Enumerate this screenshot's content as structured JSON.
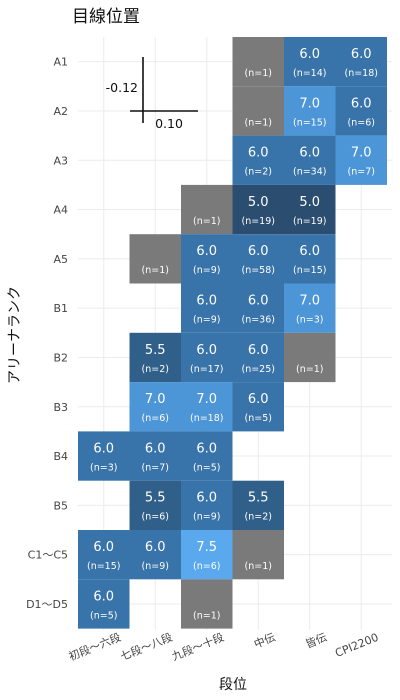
{
  "chart_data": {
    "type": "heatmap",
    "title": "目線位置",
    "xlabel": "段位",
    "ylabel": "アリーナランク",
    "x_categories": [
      "初段～六段",
      "七段～八段",
      "九段～十段",
      "中伝",
      "皆伝",
      "CPI2200"
    ],
    "y_categories": [
      "A1",
      "A2",
      "A3",
      "A4",
      "A5",
      "B1",
      "B2",
      "B3",
      "B4",
      "B5",
      "C1～C5",
      "D1～D5"
    ],
    "inset": {
      "vertical_value": "-0.12",
      "horizontal_value": "0.10"
    },
    "colors": {
      "5.0": "#2a4d70",
      "5.5": "#30608a",
      "6.0": "#3873aa",
      "7.0": "#4c95d6",
      "7.5": "#5aa8ee",
      "na": "#7a7a7a"
    },
    "cells": [
      {
        "x": "中伝",
        "y": "A1",
        "value": null,
        "value_label": "",
        "n_label": "(n=1)"
      },
      {
        "x": "皆伝",
        "y": "A1",
        "value": 6.0,
        "value_label": "6.0",
        "n_label": "(n=14)"
      },
      {
        "x": "CPI2200",
        "y": "A1",
        "value": 6.0,
        "value_label": "6.0",
        "n_label": "(n=18)"
      },
      {
        "x": "中伝",
        "y": "A2",
        "value": null,
        "value_label": "",
        "n_label": "(n=1)"
      },
      {
        "x": "皆伝",
        "y": "A2",
        "value": 7.0,
        "value_label": "7.0",
        "n_label": "(n=15)"
      },
      {
        "x": "CPI2200",
        "y": "A2",
        "value": 6.0,
        "value_label": "6.0",
        "n_label": "(n=6)"
      },
      {
        "x": "中伝",
        "y": "A3",
        "value": 6.0,
        "value_label": "6.0",
        "n_label": "(n=2)"
      },
      {
        "x": "皆伝",
        "y": "A3",
        "value": 6.0,
        "value_label": "6.0",
        "n_label": "(n=34)"
      },
      {
        "x": "CPI2200",
        "y": "A3",
        "value": 7.0,
        "value_label": "7.0",
        "n_label": "(n=7)"
      },
      {
        "x": "九段～十段",
        "y": "A4",
        "value": null,
        "value_label": "",
        "n_label": "(n=1)"
      },
      {
        "x": "中伝",
        "y": "A4",
        "value": 5.0,
        "value_label": "5.0",
        "n_label": "(n=19)"
      },
      {
        "x": "皆伝",
        "y": "A4",
        "value": 5.0,
        "value_label": "5.0",
        "n_label": "(n=19)"
      },
      {
        "x": "七段～八段",
        "y": "A5",
        "value": null,
        "value_label": "",
        "n_label": "(n=1)"
      },
      {
        "x": "九段～十段",
        "y": "A5",
        "value": 6.0,
        "value_label": "6.0",
        "n_label": "(n=9)"
      },
      {
        "x": "中伝",
        "y": "A5",
        "value": 6.0,
        "value_label": "6.0",
        "n_label": "(n=58)"
      },
      {
        "x": "皆伝",
        "y": "A5",
        "value": 6.0,
        "value_label": "6.0",
        "n_label": "(n=15)"
      },
      {
        "x": "九段～十段",
        "y": "B1",
        "value": 6.0,
        "value_label": "6.0",
        "n_label": "(n=9)"
      },
      {
        "x": "中伝",
        "y": "B1",
        "value": 6.0,
        "value_label": "6.0",
        "n_label": "(n=36)"
      },
      {
        "x": "皆伝",
        "y": "B1",
        "value": 7.0,
        "value_label": "7.0",
        "n_label": "(n=3)"
      },
      {
        "x": "七段～八段",
        "y": "B2",
        "value": 5.5,
        "value_label": "5.5",
        "n_label": "(n=2)"
      },
      {
        "x": "九段～十段",
        "y": "B2",
        "value": 6.0,
        "value_label": "6.0",
        "n_label": "(n=17)"
      },
      {
        "x": "中伝",
        "y": "B2",
        "value": 6.0,
        "value_label": "6.0",
        "n_label": "(n=25)"
      },
      {
        "x": "皆伝",
        "y": "B2",
        "value": null,
        "value_label": "",
        "n_label": "(n=1)"
      },
      {
        "x": "七段～八段",
        "y": "B3",
        "value": 7.0,
        "value_label": "7.0",
        "n_label": "(n=6)"
      },
      {
        "x": "九段～十段",
        "y": "B3",
        "value": 7.0,
        "value_label": "7.0",
        "n_label": "(n=18)"
      },
      {
        "x": "中伝",
        "y": "B3",
        "value": 6.0,
        "value_label": "6.0",
        "n_label": "(n=5)"
      },
      {
        "x": "初段～六段",
        "y": "B4",
        "value": 6.0,
        "value_label": "6.0",
        "n_label": "(n=3)"
      },
      {
        "x": "七段～八段",
        "y": "B4",
        "value": 6.0,
        "value_label": "6.0",
        "n_label": "(n=7)"
      },
      {
        "x": "九段～十段",
        "y": "B4",
        "value": 6.0,
        "value_label": "6.0",
        "n_label": "(n=5)"
      },
      {
        "x": "七段～八段",
        "y": "B5",
        "value": 5.5,
        "value_label": "5.5",
        "n_label": "(n=6)"
      },
      {
        "x": "九段～十段",
        "y": "B5",
        "value": 6.0,
        "value_label": "6.0",
        "n_label": "(n=9)"
      },
      {
        "x": "中伝",
        "y": "B5",
        "value": 5.5,
        "value_label": "5.5",
        "n_label": "(n=2)"
      },
      {
        "x": "初段～六段",
        "y": "C1～C5",
        "value": 6.0,
        "value_label": "6.0",
        "n_label": "(n=15)"
      },
      {
        "x": "七段～八段",
        "y": "C1～C5",
        "value": 6.0,
        "value_label": "6.0",
        "n_label": "(n=9)"
      },
      {
        "x": "九段～十段",
        "y": "C1～C5",
        "value": 7.5,
        "value_label": "7.5",
        "n_label": "(n=6)"
      },
      {
        "x": "中伝",
        "y": "C1～C5",
        "value": null,
        "value_label": "",
        "n_label": "(n=1)"
      },
      {
        "x": "初段～六段",
        "y": "D1～D5",
        "value": 6.0,
        "value_label": "6.0",
        "n_label": "(n=5)"
      },
      {
        "x": "九段～十段",
        "y": "D1～D5",
        "value": null,
        "value_label": "",
        "n_label": "(n=1)"
      }
    ]
  }
}
